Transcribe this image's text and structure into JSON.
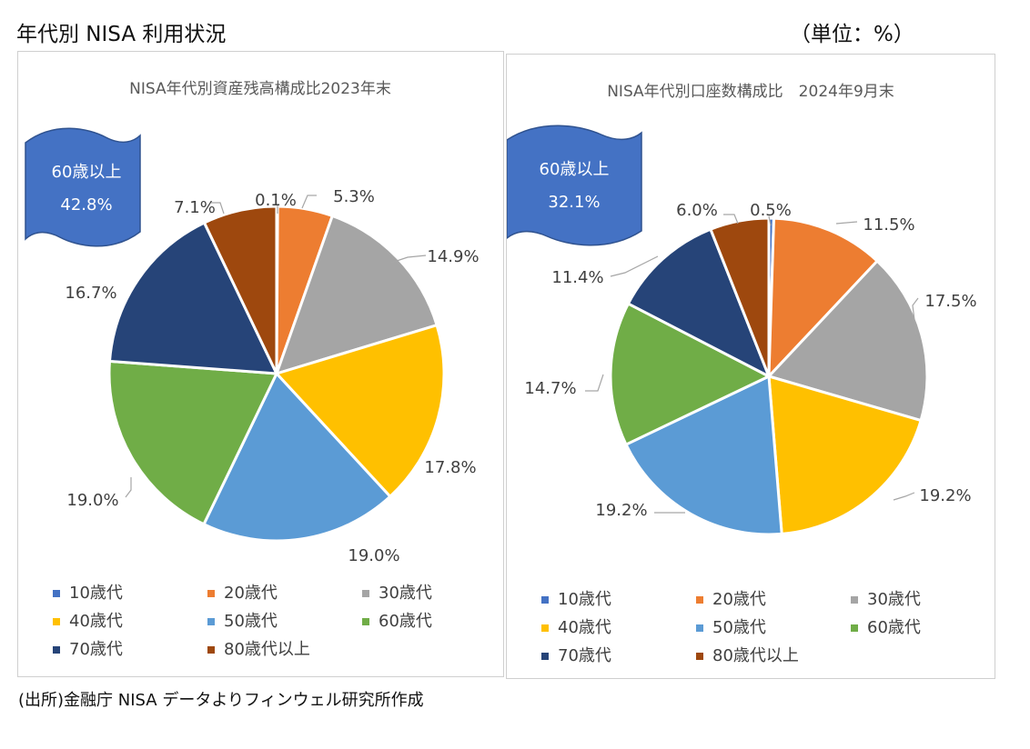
{
  "page": {
    "title": "年代別 NISA 利用状況",
    "unit": "（単位：%）",
    "source": "(出所)金融庁 NISA データよりフィンウェル研究所作成"
  },
  "colors": {
    "10歳代": "#4472C4",
    "20歳代": "#ED7D31",
    "30歳代": "#A5A5A5",
    "40歳代": "#FFC000",
    "50歳代": "#5B9BD5",
    "60歳代": "#70AD47",
    "70歳代": "#264478",
    "80歳代以上": "#9E480E",
    "banner": "#4472C4"
  },
  "chart_data": [
    {
      "type": "pie",
      "title": "NISA年代別資産残高構成比2023年末",
      "categories": [
        "10歳代",
        "20歳代",
        "30歳代",
        "40歳代",
        "50歳代",
        "60歳代",
        "70歳代",
        "80歳代以上"
      ],
      "values": [
        0.1,
        5.3,
        14.9,
        17.8,
        19.0,
        19.0,
        16.7,
        7.1
      ],
      "data_labels": [
        "0.1%",
        "5.3%",
        "14.9%",
        "17.8%",
        "19.0%",
        "19.0%",
        "16.7%",
        "7.1%"
      ],
      "legend": [
        "10歳代",
        "20歳代",
        "30歳代",
        "40歳代",
        "50歳代",
        "60歳代",
        "70歳代",
        "80歳代以上"
      ],
      "legend_position": "bottom",
      "callout": {
        "line1": "60歳以上",
        "line2": "42.8%"
      }
    },
    {
      "type": "pie",
      "title": "NISA年代別口座数構成比　2024年9月末",
      "categories": [
        "10歳代",
        "20歳代",
        "30歳代",
        "40歳代",
        "50歳代",
        "60歳代",
        "70歳代",
        "80歳代以上"
      ],
      "values": [
        0.5,
        11.5,
        17.5,
        19.2,
        19.2,
        14.7,
        11.4,
        6.0
      ],
      "data_labels": [
        "0.5%",
        "11.5%",
        "17.5%",
        "19.2%",
        "19.2%",
        "14.7%",
        "11.4%",
        "6.0%"
      ],
      "legend": [
        "10歳代",
        "20歳代",
        "30歳代",
        "40歳代",
        "50歳代",
        "60歳代",
        "70歳代",
        "80歳代以上"
      ],
      "legend_position": "bottom",
      "callout": {
        "line1": "60歳以上",
        "line2": "32.1%"
      }
    }
  ]
}
